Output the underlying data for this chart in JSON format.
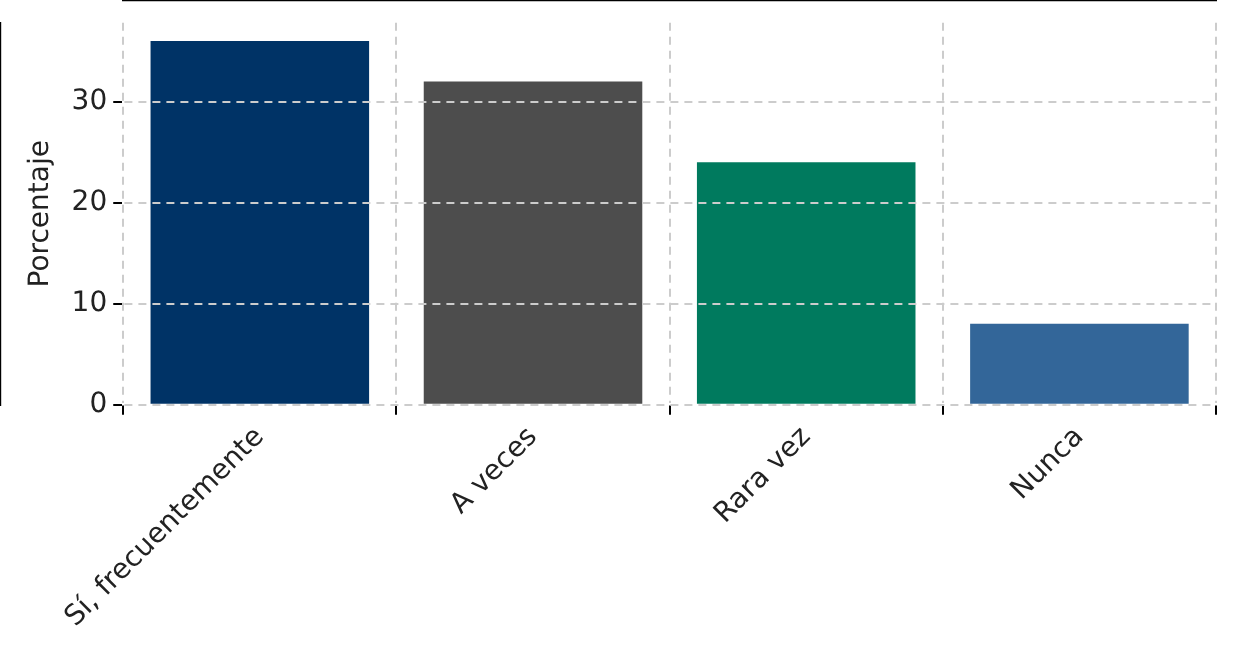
{
  "chart_data": {
    "type": "bar",
    "ylabel": "Porcentaje",
    "categories": [
      "Sí, frecuentemente",
      "A veces",
      "Rara vez",
      "Nunca"
    ],
    "values": [
      36,
      32,
      24,
      8
    ],
    "colors": [
      "#003366",
      "#4d4d4d",
      "#007a5e",
      "#336699"
    ],
    "ylim": [
      0,
      37.8
    ],
    "yticks": [
      0,
      10,
      20,
      30
    ],
    "grid": true,
    "line_style": "dashed"
  }
}
